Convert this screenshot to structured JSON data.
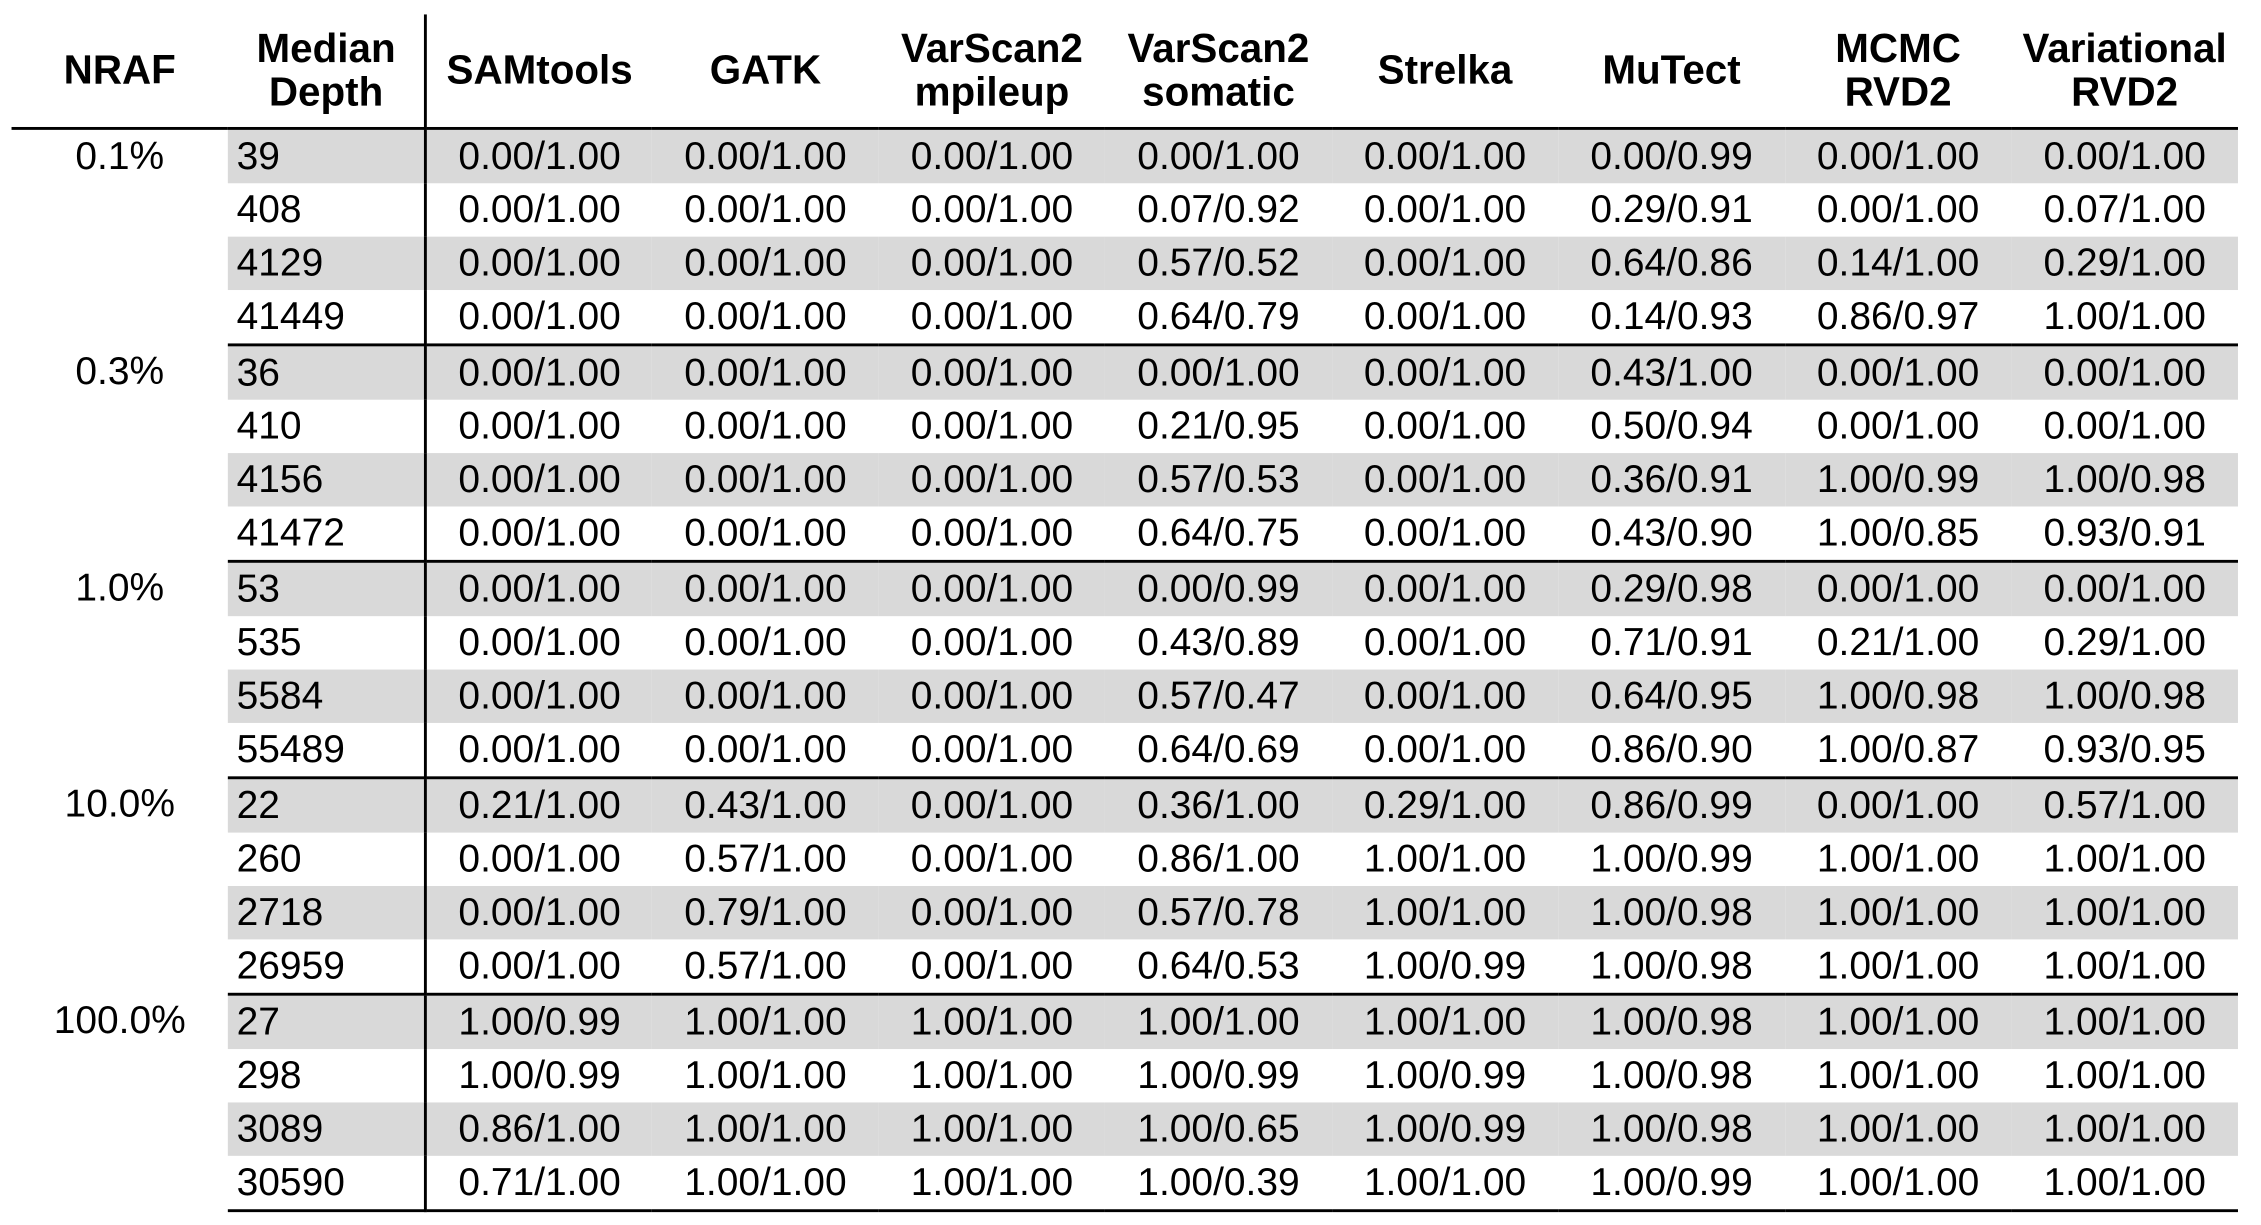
{
  "headers": [
    "NRAF",
    "Median\nDepth",
    "SAMtools",
    "GATK",
    "VarScan2\nmpileup",
    "VarScan2\nsomatic",
    "Strelka",
    "MuTect",
    "MCMC\nRVD2",
    "Variational\nRVD2"
  ],
  "groups": [
    {
      "nraf": "0.1%",
      "rows": [
        {
          "depth": "39",
          "values": [
            "0.00/1.00",
            "0.00/1.00",
            "0.00/1.00",
            "0.00/1.00",
            "0.00/1.00",
            "0.00/0.99",
            "0.00/1.00",
            "0.00/1.00"
          ]
        },
        {
          "depth": "408",
          "values": [
            "0.00/1.00",
            "0.00/1.00",
            "0.00/1.00",
            "0.07/0.92",
            "0.00/1.00",
            "0.29/0.91",
            "0.00/1.00",
            "0.07/1.00"
          ]
        },
        {
          "depth": "4129",
          "values": [
            "0.00/1.00",
            "0.00/1.00",
            "0.00/1.00",
            "0.57/0.52",
            "0.00/1.00",
            "0.64/0.86",
            "0.14/1.00",
            "0.29/1.00"
          ]
        },
        {
          "depth": "41449",
          "values": [
            "0.00/1.00",
            "0.00/1.00",
            "0.00/1.00",
            "0.64/0.79",
            "0.00/1.00",
            "0.14/0.93",
            "0.86/0.97",
            "1.00/1.00"
          ]
        }
      ]
    },
    {
      "nraf": "0.3%",
      "rows": [
        {
          "depth": "36",
          "values": [
            "0.00/1.00",
            "0.00/1.00",
            "0.00/1.00",
            "0.00/1.00",
            "0.00/1.00",
            "0.43/1.00",
            "0.00/1.00",
            "0.00/1.00"
          ]
        },
        {
          "depth": "410",
          "values": [
            "0.00/1.00",
            "0.00/1.00",
            "0.00/1.00",
            "0.21/0.95",
            "0.00/1.00",
            "0.50/0.94",
            "0.00/1.00",
            "0.00/1.00"
          ]
        },
        {
          "depth": "4156",
          "values": [
            "0.00/1.00",
            "0.00/1.00",
            "0.00/1.00",
            "0.57/0.53",
            "0.00/1.00",
            "0.36/0.91",
            "1.00/0.99",
            "1.00/0.98"
          ]
        },
        {
          "depth": "41472",
          "values": [
            "0.00/1.00",
            "0.00/1.00",
            "0.00/1.00",
            "0.64/0.75",
            "0.00/1.00",
            "0.43/0.90",
            "1.00/0.85",
            "0.93/0.91"
          ]
        }
      ]
    },
    {
      "nraf": "1.0%",
      "rows": [
        {
          "depth": "53",
          "values": [
            "0.00/1.00",
            "0.00/1.00",
            "0.00/1.00",
            "0.00/0.99",
            "0.00/1.00",
            "0.29/0.98",
            "0.00/1.00",
            "0.00/1.00"
          ]
        },
        {
          "depth": "535",
          "values": [
            "0.00/1.00",
            "0.00/1.00",
            "0.00/1.00",
            "0.43/0.89",
            "0.00/1.00",
            "0.71/0.91",
            "0.21/1.00",
            "0.29/1.00"
          ]
        },
        {
          "depth": "5584",
          "values": [
            "0.00/1.00",
            "0.00/1.00",
            "0.00/1.00",
            "0.57/0.47",
            "0.00/1.00",
            "0.64/0.95",
            "1.00/0.98",
            "1.00/0.98"
          ]
        },
        {
          "depth": "55489",
          "values": [
            "0.00/1.00",
            "0.00/1.00",
            "0.00/1.00",
            "0.64/0.69",
            "0.00/1.00",
            "0.86/0.90",
            "1.00/0.87",
            "0.93/0.95"
          ]
        }
      ]
    },
    {
      "nraf": "10.0%",
      "rows": [
        {
          "depth": "22",
          "values": [
            "0.21/1.00",
            "0.43/1.00",
            "0.00/1.00",
            "0.36/1.00",
            "0.29/1.00",
            "0.86/0.99",
            "0.00/1.00",
            "0.57/1.00"
          ]
        },
        {
          "depth": "260",
          "values": [
            "0.00/1.00",
            "0.57/1.00",
            "0.00/1.00",
            "0.86/1.00",
            "1.00/1.00",
            "1.00/0.99",
            "1.00/1.00",
            "1.00/1.00"
          ]
        },
        {
          "depth": "2718",
          "values": [
            "0.00/1.00",
            "0.79/1.00",
            "0.00/1.00",
            "0.57/0.78",
            "1.00/1.00",
            "1.00/0.98",
            "1.00/1.00",
            "1.00/1.00"
          ]
        },
        {
          "depth": "26959",
          "values": [
            "0.00/1.00",
            "0.57/1.00",
            "0.00/1.00",
            "0.64/0.53",
            "1.00/0.99",
            "1.00/0.98",
            "1.00/1.00",
            "1.00/1.00"
          ]
        }
      ]
    },
    {
      "nraf": "100.0%",
      "rows": [
        {
          "depth": "27",
          "values": [
            "1.00/0.99",
            "1.00/1.00",
            "1.00/1.00",
            "1.00/1.00",
            "1.00/1.00",
            "1.00/0.98",
            "1.00/1.00",
            "1.00/1.00"
          ]
        },
        {
          "depth": "298",
          "values": [
            "1.00/0.99",
            "1.00/1.00",
            "1.00/1.00",
            "1.00/0.99",
            "1.00/0.99",
            "1.00/0.98",
            "1.00/1.00",
            "1.00/1.00"
          ]
        },
        {
          "depth": "3089",
          "values": [
            "0.86/1.00",
            "1.00/1.00",
            "1.00/1.00",
            "1.00/0.65",
            "1.00/0.99",
            "1.00/0.98",
            "1.00/1.00",
            "1.00/1.00"
          ]
        },
        {
          "depth": "30590",
          "values": [
            "0.71/1.00",
            "1.00/1.00",
            "1.00/1.00",
            "1.00/0.39",
            "1.00/1.00",
            "1.00/0.99",
            "1.00/1.00",
            "1.00/1.00"
          ]
        }
      ]
    }
  ]
}
